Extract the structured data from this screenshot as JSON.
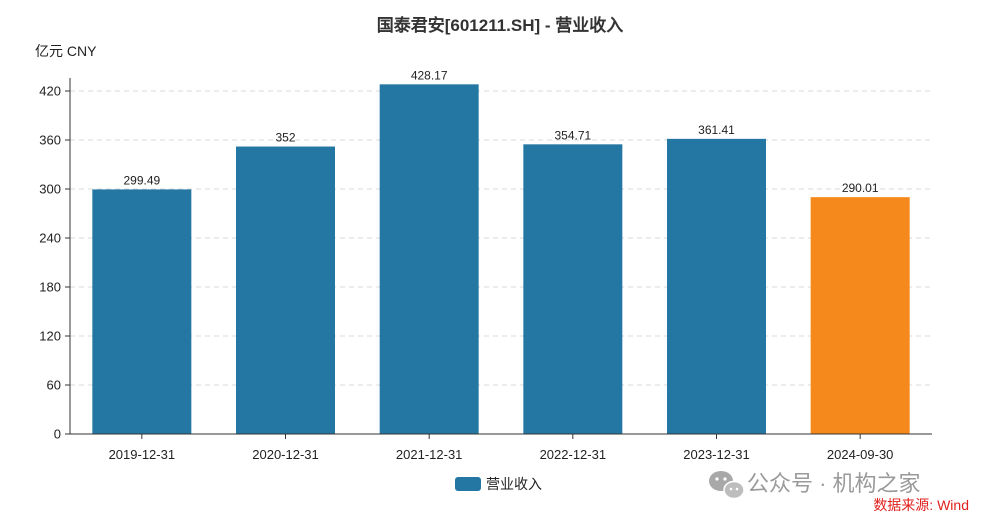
{
  "chart_data": {
    "type": "bar",
    "title": "国泰君安[601211.SH] - 营业收入",
    "unit_label": "亿元  CNY",
    "categories": [
      "2019-12-31",
      "2020-12-31",
      "2021-12-31",
      "2022-12-31",
      "2023-12-31",
      "2024-09-30"
    ],
    "values": [
      299.49,
      352,
      428.17,
      354.71,
      361.41,
      290.01
    ],
    "value_labels": [
      "299.49",
      "352",
      "428.17",
      "354.71",
      "361.41",
      "290.01"
    ],
    "series": [
      {
        "name": "营业收入",
        "values": [
          299.49,
          352,
          428.17,
          354.71,
          361.41,
          290.01
        ]
      }
    ],
    "ylim": [
      0,
      420
    ],
    "yticks": [
      0,
      60,
      120,
      180,
      240,
      300,
      360,
      420
    ],
    "ytick_labels": [
      "0",
      "60",
      "120",
      "180",
      "240",
      "300",
      "360",
      "420"
    ],
    "grid": true,
    "legend": "bottom-center",
    "colors": {
      "bar": "#2476a3",
      "highlight": "#f5891b",
      "highlight_index": 5
    }
  },
  "watermark": "公众号 · 机构之家",
  "source": "数据来源: Wind"
}
